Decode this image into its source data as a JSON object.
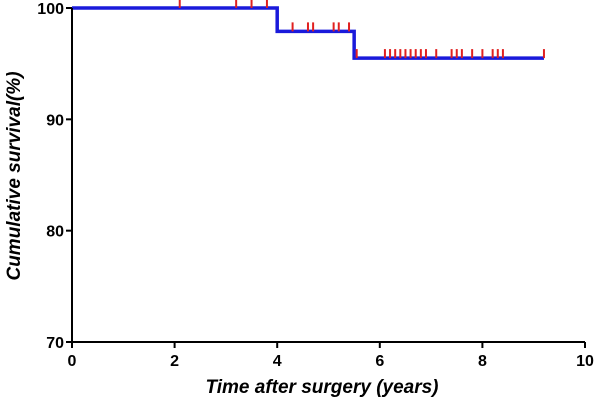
{
  "chart_data": {
    "type": "line",
    "title": "",
    "xlabel": "Time after surgery (years)",
    "ylabel": "Cumulative survival(%)",
    "xlim": [
      0,
      10
    ],
    "ylim": [
      70,
      100
    ],
    "x_ticks": [
      "0",
      "2",
      "4",
      "6",
      "8",
      "10"
    ],
    "y_ticks": [
      "70",
      "80",
      "90",
      "100"
    ],
    "grid": false,
    "series": [
      {
        "step_points": [
          [
            0,
            100
          ],
          [
            4.0,
            100
          ],
          [
            4.0,
            97.9
          ],
          [
            5.5,
            97.9
          ],
          [
            5.5,
            95.5
          ],
          [
            9.2,
            95.5
          ]
        ],
        "censored_times": [
          2.1,
          3.2,
          3.5,
          3.8,
          4.3,
          4.6,
          4.7,
          5.1,
          5.2,
          5.4,
          5.55,
          6.1,
          6.2,
          6.3,
          6.4,
          6.5,
          6.6,
          6.7,
          6.8,
          6.9,
          7.1,
          7.4,
          7.5,
          7.6,
          7.8,
          8.0,
          8.2,
          8.3,
          8.4,
          9.2
        ]
      }
    ],
    "colors": {
      "line": "#1a1adb",
      "censor": "#e02020",
      "axis": "#000000"
    }
  }
}
